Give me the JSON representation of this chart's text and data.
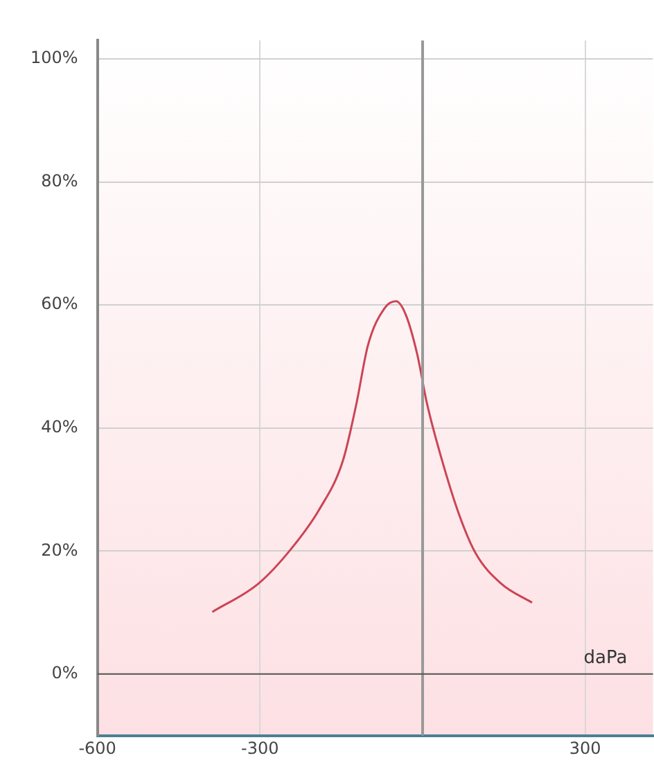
{
  "chart_data": {
    "type": "line",
    "x": [
      -388,
      -303,
      -243,
      -191,
      -147,
      -122,
      -101,
      -70,
      -49,
      -31,
      -10,
      8,
      34,
      67,
      98,
      145,
      202
    ],
    "series": [
      {
        "color": "#cc4455",
        "values": [
          10.1,
          14.7,
          20.3,
          26.7,
          34.7,
          44,
          53.4,
          59.5,
          60.6,
          58.4,
          52,
          44,
          35.3,
          26,
          19.6,
          14.7,
          11.6
        ]
      }
    ],
    "xlim": [
      -600,
      425
    ],
    "xticks": [
      -600,
      -300,
      {
        "value": 0,
        "label": null
      },
      300
    ],
    "ylim": [
      -10,
      103
    ],
    "yticks": [
      {
        "value": 0,
        "label": "0%"
      },
      {
        "value": 20,
        "label": "20%"
      },
      {
        "value": 40,
        "label": "40%"
      },
      {
        "value": 60,
        "label": "60%"
      },
      {
        "value": 80,
        "label": "80%"
      },
      {
        "value": 100,
        "label": "100%"
      }
    ],
    "grid": true,
    "marker": "none",
    "line_style": "solid",
    "legend": false,
    "ref_lines": [
      {
        "axis": "x",
        "value": 0,
        "color": "#999999"
      },
      {
        "axis": "y",
        "value": 0,
        "color": "#555555"
      }
    ],
    "annotations": [
      "daPa"
    ]
  }
}
